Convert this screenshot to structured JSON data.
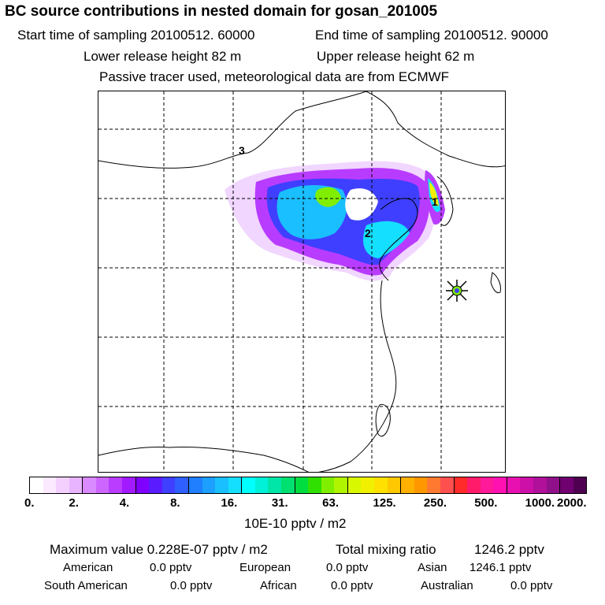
{
  "header": {
    "title": "BC  source contributions in nested domain for gosan_201005",
    "start_time": "Start time of sampling 20100512. 60000",
    "end_time": "End time of sampling 20100512. 90000",
    "lower_release": "Lower release height   82 m",
    "upper_release": "Upper release height   62 m",
    "tracer_note": "Passive tracer used, meteorological data are from ECMWF"
  },
  "chart_data": {
    "type": "heatmap",
    "title": "BC  source contributions in nested domain for gosan_201005",
    "colorbar_unit": "10E-10 pptv / m2",
    "colorbar_ticks": [
      "0.",
      "2.",
      "4.",
      "8.",
      "16.",
      "31.",
      "63.",
      "125.",
      "250.",
      "500.",
      "1000.",
      "2000."
    ],
    "colorbar_colors": [
      "#ffffff",
      "#fbe9ff",
      "#f4d0ff",
      "#e8b4ff",
      "#d98aff",
      "#cc66ff",
      "#b93cff",
      "#a21aff",
      "#7f00ff",
      "#5a1cff",
      "#3f3fff",
      "#2f5fff",
      "#1f7fff",
      "#1c9fff",
      "#1abfff",
      "#14dfff",
      "#00ffff",
      "#00f0d8",
      "#00e6a8",
      "#00e070",
      "#00dd40",
      "#30e000",
      "#80ee00",
      "#b0f400",
      "#d8f800",
      "#f0f000",
      "#ffe000",
      "#ffc800",
      "#ffb000",
      "#ff9800",
      "#ff7a30",
      "#ff5050",
      "#ff2a2a",
      "#ff1a6a",
      "#ff1a9a",
      "#ff10b0",
      "#e810b0",
      "#cc10a8",
      "#b0109a",
      "#90108a",
      "#700070",
      "#500050"
    ],
    "map_labels": [
      "1",
      "2",
      "3"
    ],
    "receptor": "gosan"
  },
  "stats": {
    "max_value": "Maximum value  0.228E-07 pptv / m2",
    "total_mixing": "Total mixing ratio",
    "total_value": "1246.2 pptv",
    "american_label": "American",
    "american_value": "0.0 pptv",
    "european_label": "European",
    "european_value": "0.0 pptv",
    "asian_label": "Asian",
    "asian_value": "1246.1 pptv",
    "south_american_label": "South American",
    "south_american_value": "0.0 pptv",
    "african_label": "African",
    "african_value": "0.0 pptv",
    "australian_label": "Australian",
    "australian_value": "0.0 pptv"
  }
}
